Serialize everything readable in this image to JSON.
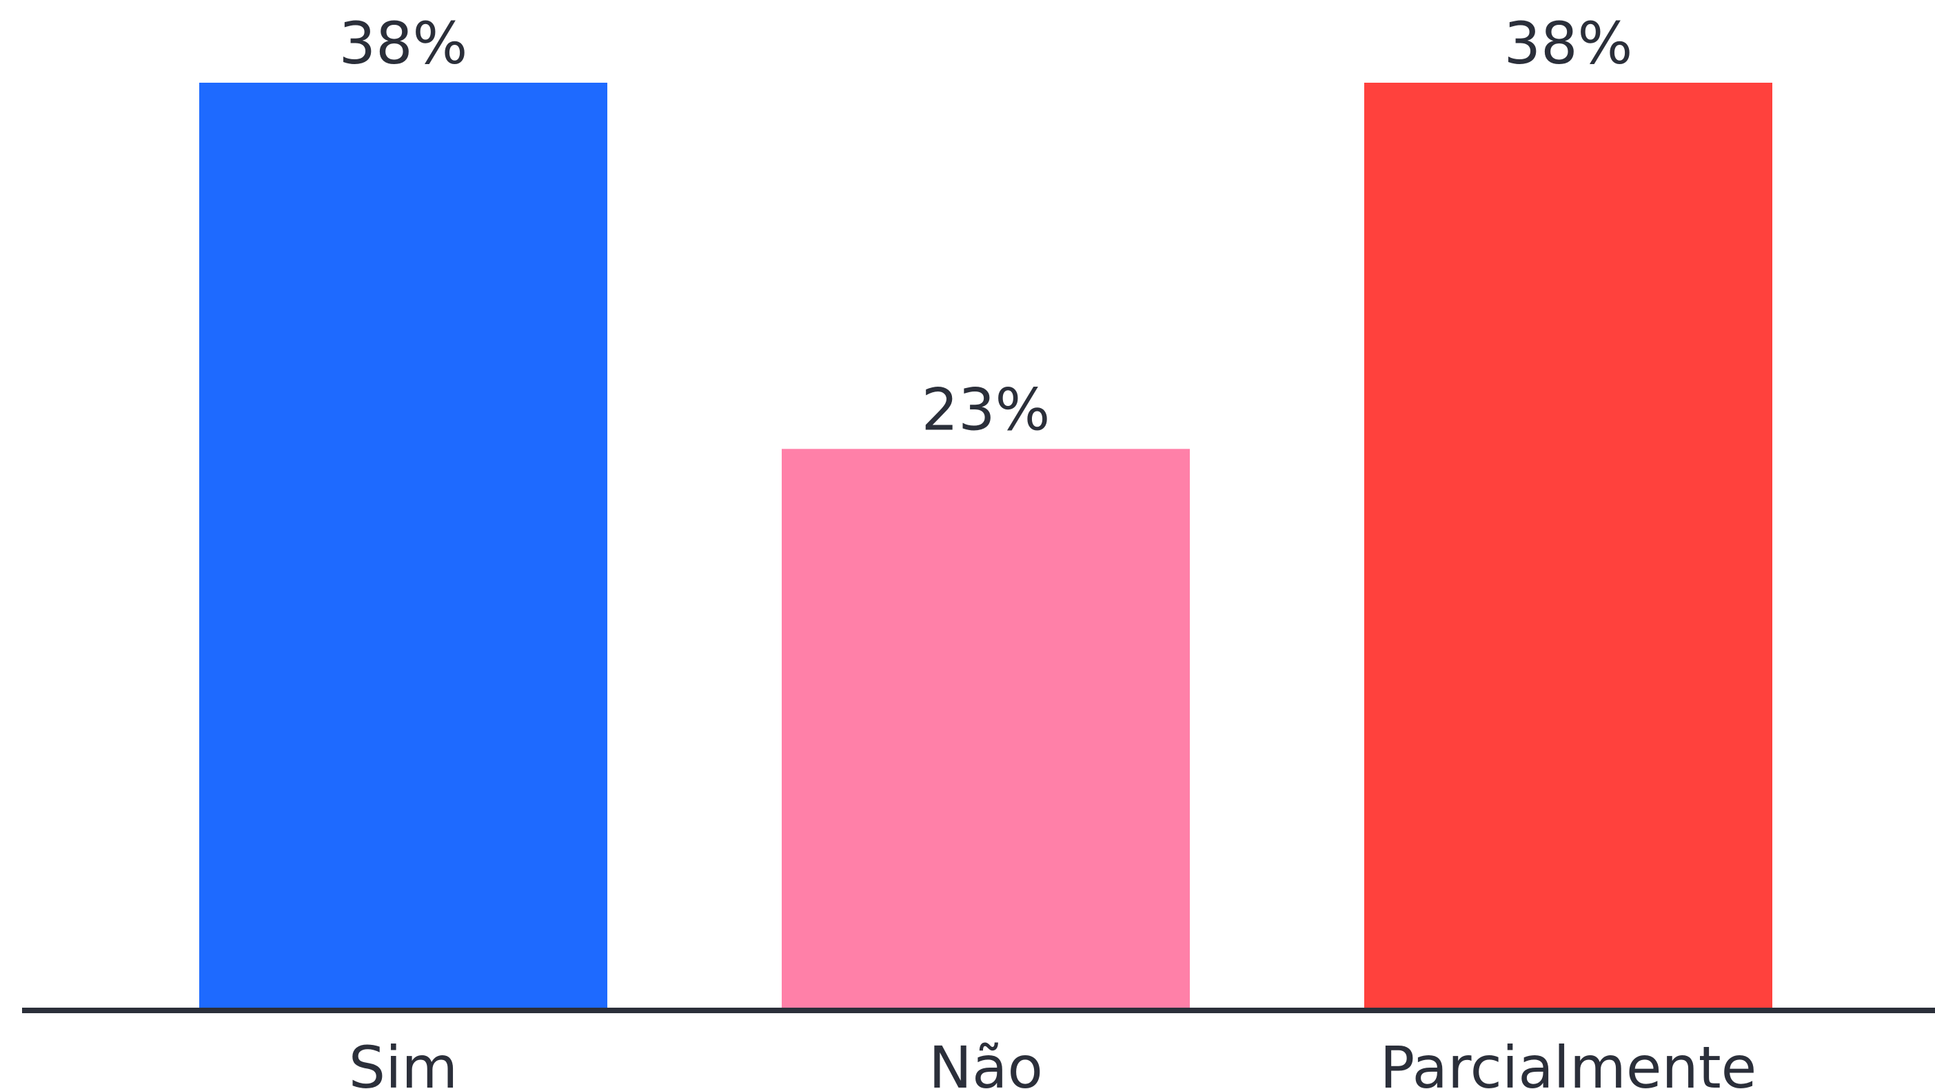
{
  "chart_data": {
    "type": "bar",
    "categories": [
      "Sim",
      "Não",
      "Parcialmente"
    ],
    "values": [
      38,
      23,
      38
    ],
    "value_labels": [
      "38%",
      "23%",
      "38%"
    ],
    "colors": [
      "#1e6aff",
      "#ff80a8",
      "#ff413d"
    ],
    "title": "",
    "xlabel": "",
    "ylabel": "",
    "ylim": [
      0,
      38
    ],
    "grid": false,
    "legend": "none"
  },
  "colors": {
    "axis_line": "#2b2f3a",
    "text": "#2b2f3a",
    "background": "#ffffff"
  }
}
